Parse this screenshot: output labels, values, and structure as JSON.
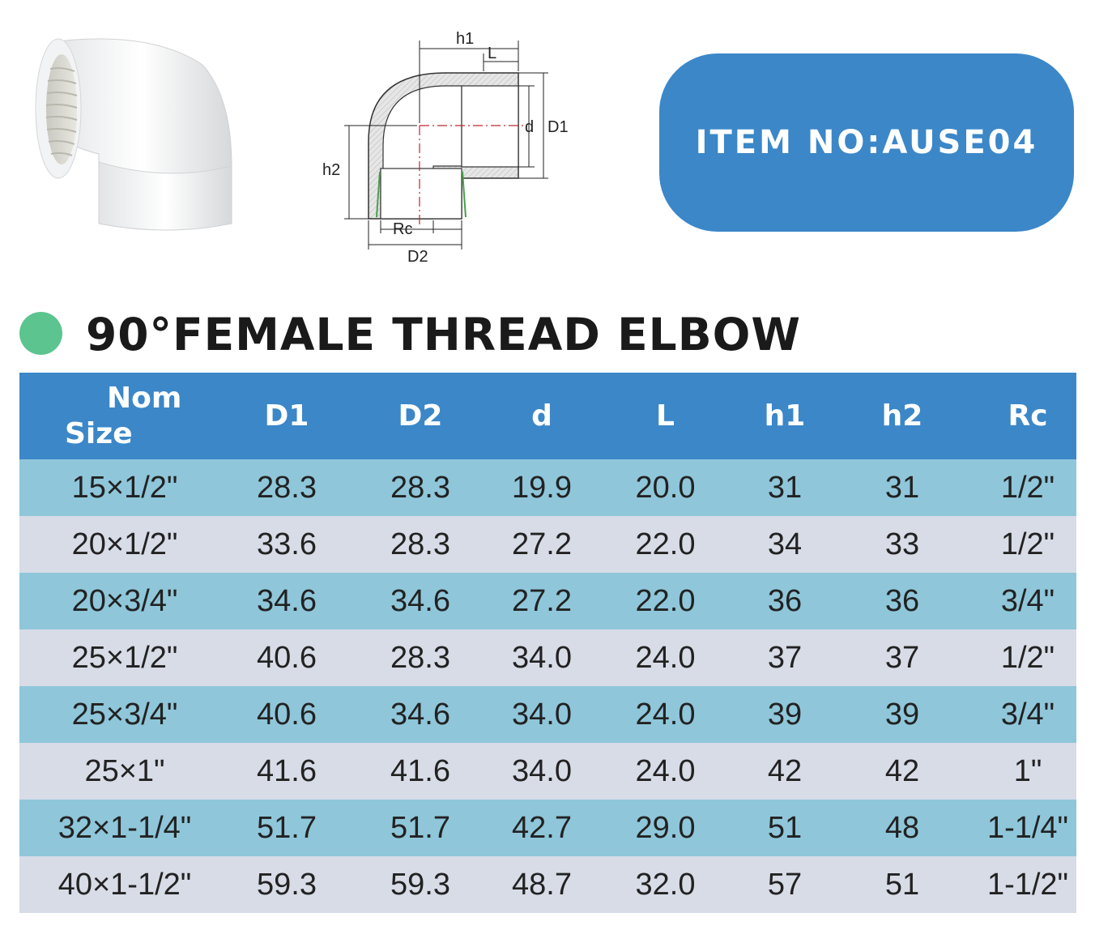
{
  "header": {
    "item_label": "ITEM NO:AUSE04"
  },
  "diagram": {
    "labels": {
      "h1": "h1",
      "L": "L",
      "d": "d",
      "D1": "D1",
      "h2": "h2",
      "Rc": "Rc",
      "D2": "D2"
    }
  },
  "title": "90°FEMALE THREAD ELBOW",
  "colors": {
    "accent_blue": "#3b87c8",
    "title_dot_green": "#5cc48f",
    "row_blue": "#8fc6da",
    "row_gray": "#d7dce7"
  },
  "table": {
    "headers": {
      "nom_line1": "Nom",
      "nom_line2": "Size",
      "D1": "D1",
      "D2": "D2",
      "d": "d",
      "L": "L",
      "h1": "h1",
      "h2": "h2",
      "Rc": "Rc"
    },
    "rows": [
      [
        "15×1/2\"",
        "28.3",
        "28.3",
        "19.9",
        "20.0",
        "31",
        "31",
        "1/2\""
      ],
      [
        "20×1/2\"",
        "33.6",
        "28.3",
        "27.2",
        "22.0",
        "34",
        "33",
        "1/2\""
      ],
      [
        "20×3/4\"",
        "34.6",
        "34.6",
        "27.2",
        "22.0",
        "36",
        "36",
        "3/4\""
      ],
      [
        "25×1/2\"",
        "40.6",
        "28.3",
        "34.0",
        "24.0",
        "37",
        "37",
        "1/2\""
      ],
      [
        "25×3/4\"",
        "40.6",
        "34.6",
        "34.0",
        "24.0",
        "39",
        "39",
        "3/4\""
      ],
      [
        "25×1\"",
        "41.6",
        "41.6",
        "34.0",
        "24.0",
        "42",
        "42",
        "1\""
      ],
      [
        "32×1-1/4\"",
        "51.7",
        "51.7",
        "42.7",
        "29.0",
        "51",
        "48",
        "1-1/4\""
      ],
      [
        "40×1-1/2\"",
        "59.3",
        "59.3",
        "48.7",
        "32.0",
        "57",
        "51",
        "1-1/2\""
      ]
    ]
  }
}
